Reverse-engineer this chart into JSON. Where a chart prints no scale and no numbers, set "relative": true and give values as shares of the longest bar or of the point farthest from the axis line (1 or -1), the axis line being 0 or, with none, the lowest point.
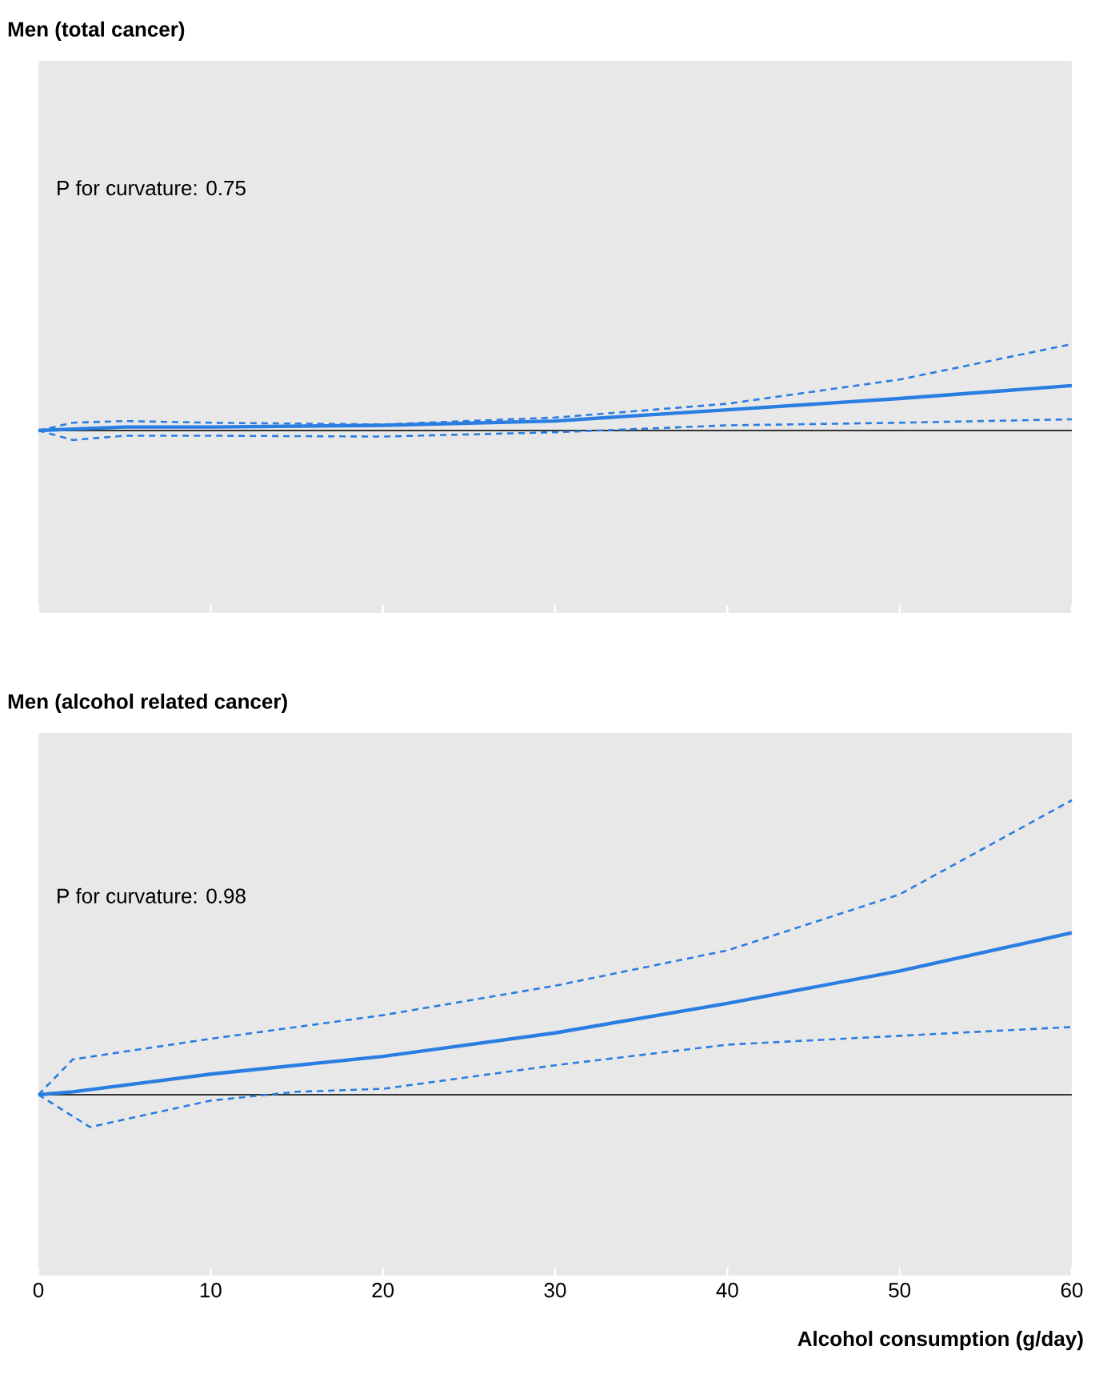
{
  "chart_data": [
    {
      "type": "line",
      "title": "Men (total cancer)",
      "annotations": [
        "P for curvature: 0.75"
      ],
      "relative": true,
      "xlim": [
        0,
        60
      ],
      "xticks": [
        0,
        10,
        20,
        30,
        40,
        50,
        60
      ],
      "tick_labels": false,
      "ref_lines": [
        {
          "axis": "y",
          "value": 0,
          "color": "#333333"
        }
      ],
      "series": [
        {
          "color": "#2a7de1",
          "line_style": "solid",
          "x": [
            0,
            5,
            10,
            20,
            30,
            40,
            50,
            60
          ],
          "values": [
            0,
            0.04,
            0.04,
            0.06,
            0.11,
            0.24,
            0.37,
            0.52
          ]
        },
        {
          "color": "#2a7de1",
          "line_style": "dashed",
          "x": [
            0,
            2,
            5,
            10,
            20,
            30,
            40,
            50,
            60
          ],
          "values": [
            0,
            0.09,
            0.11,
            0.09,
            0.07,
            0.15,
            0.31,
            0.59,
            1
          ]
        },
        {
          "color": "#2a7de1",
          "line_style": "dashed",
          "x": [
            0,
            2,
            5,
            10,
            20,
            30,
            40,
            50,
            60
          ],
          "values": [
            0,
            -0.11,
            -0.06,
            -0.06,
            -0.07,
            -0.02,
            0.06,
            0.09,
            0.13
          ]
        }
      ]
    },
    {
      "type": "line",
      "title": "Men (alcohol related cancer)",
      "annotations": [
        "P for curvature: 0.98"
      ],
      "xlabel": "Alcohol consumption (g/day)",
      "relative": true,
      "xlim": [
        0,
        60
      ],
      "xticks": [
        0,
        10,
        20,
        30,
        40,
        50,
        60
      ],
      "tick_labels": "x",
      "ref_lines": [
        {
          "axis": "y",
          "value": 0,
          "color": "#333333"
        }
      ],
      "series": [
        {
          "color": "#2a7de1",
          "line_style": "solid",
          "x": [
            0,
            2,
            10,
            20,
            30,
            40,
            50,
            60
          ],
          "values": [
            0,
            0.01,
            0.07,
            0.13,
            0.21,
            0.31,
            0.42,
            0.55
          ]
        },
        {
          "color": "#2a7de1",
          "line_style": "dashed",
          "x": [
            0,
            2,
            10,
            20,
            30,
            40,
            50,
            60
          ],
          "values": [
            0,
            0.12,
            0.19,
            0.27,
            0.37,
            0.49,
            0.68,
            1
          ]
        },
        {
          "color": "#2a7de1",
          "line_style": "dashed",
          "x": [
            0,
            3,
            10,
            15,
            20,
            30,
            40,
            50,
            60
          ],
          "values": [
            0,
            -0.11,
            -0.02,
            0.01,
            0.02,
            0.1,
            0.17,
            0.2,
            0.23
          ]
        }
      ]
    }
  ]
}
